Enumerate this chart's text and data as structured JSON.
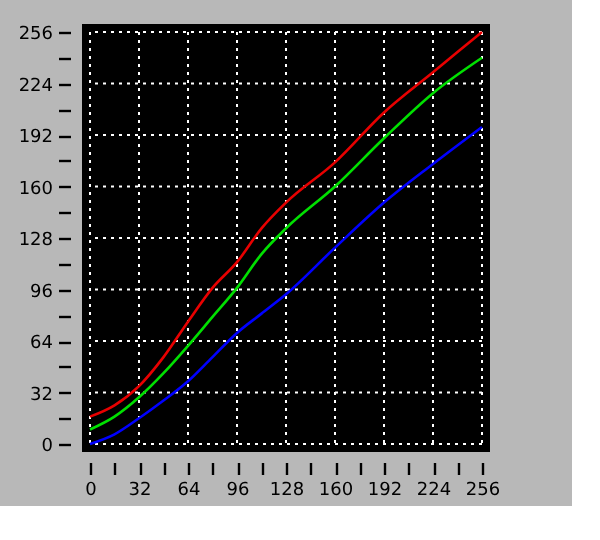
{
  "chart_data": {
    "type": "line",
    "x": [
      0,
      16,
      32,
      48,
      64,
      80,
      96,
      112,
      128,
      160,
      192,
      224,
      256
    ],
    "series": [
      {
        "color": "#e80000",
        "values": [
          17,
          24,
          36,
          54,
          76,
          97,
          113,
          134,
          150,
          175,
          206,
          231,
          256
        ]
      },
      {
        "color": "#00e000",
        "values": [
          9,
          17,
          29,
          44,
          61,
          79,
          97,
          118,
          134,
          160,
          190,
          218,
          240
        ]
      },
      {
        "color": "#0000ff",
        "values": [
          0,
          6,
          16,
          27,
          39,
          54,
          69,
          81,
          93,
          122,
          150,
          174,
          197
        ]
      }
    ],
    "xlim": [
      0,
      256
    ],
    "ylim": [
      0,
      256
    ],
    "xticks": [
      0,
      {
        "value": 16,
        "label": null
      },
      32,
      {
        "value": 48,
        "label": null
      },
      64,
      {
        "value": 80,
        "label": null
      },
      96,
      {
        "value": 112,
        "label": null
      },
      128,
      {
        "value": 144,
        "label": null
      },
      160,
      {
        "value": 176,
        "label": null
      },
      192,
      {
        "value": 208,
        "label": null
      },
      224,
      {
        "value": 240,
        "label": null
      },
      256
    ],
    "yticks": [
      0,
      {
        "value": 16,
        "label": null
      },
      32,
      {
        "value": 48,
        "label": null
      },
      64,
      {
        "value": 80,
        "label": null
      },
      96,
      {
        "value": 112,
        "label": null
      },
      128,
      {
        "value": 144,
        "label": null
      },
      160,
      {
        "value": 176,
        "label": null
      },
      192,
      {
        "value": 208,
        "label": null
      },
      224,
      {
        "value": 240,
        "label": null
      },
      256
    ],
    "grid": true,
    "marker": "none",
    "line_style": "solid"
  }
}
